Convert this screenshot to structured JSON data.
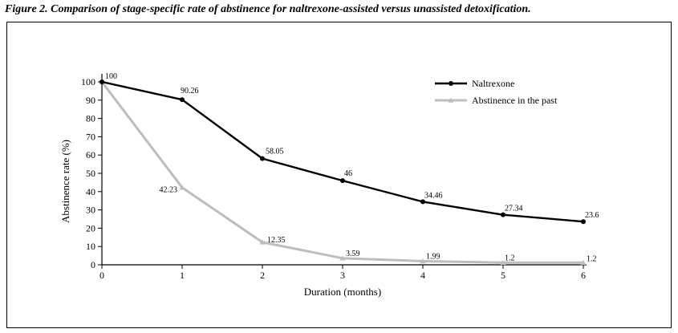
{
  "caption": "Figure 2. Comparison of stage-specific rate of abstinence for naltrexone-assisted versus unassisted detoxification.",
  "chart_data": {
    "type": "line",
    "xlabel": "Duration (months)",
    "ylabel": "Abstinence rate (%)",
    "x": [
      0,
      1,
      2,
      3,
      4,
      5,
      6
    ],
    "xlim": [
      0,
      6
    ],
    "ylim": [
      0,
      100
    ],
    "y_ticks": [
      0,
      10,
      20,
      30,
      40,
      50,
      60,
      70,
      80,
      90,
      100
    ],
    "grid": false,
    "legend_position": "top-right",
    "series": [
      {
        "name": "Naltrexone",
        "color": "#000000",
        "marker": "circle",
        "values": [
          100,
          90.26,
          58.05,
          46,
          34.46,
          27.34,
          23.6
        ],
        "labels": [
          "100",
          "90.26",
          "58.05",
          "46",
          "34.46",
          "27.34",
          "23.6"
        ]
      },
      {
        "name": "Abstinence in the past",
        "color": "#bdbdbd",
        "marker": "triangle",
        "values": [
          100,
          42.23,
          12.35,
          3.59,
          1.99,
          1.2,
          1.2
        ],
        "labels": [
          "",
          "42.23",
          "12.35",
          "3.59",
          "1.99",
          "1.2",
          "1.2"
        ]
      }
    ]
  }
}
